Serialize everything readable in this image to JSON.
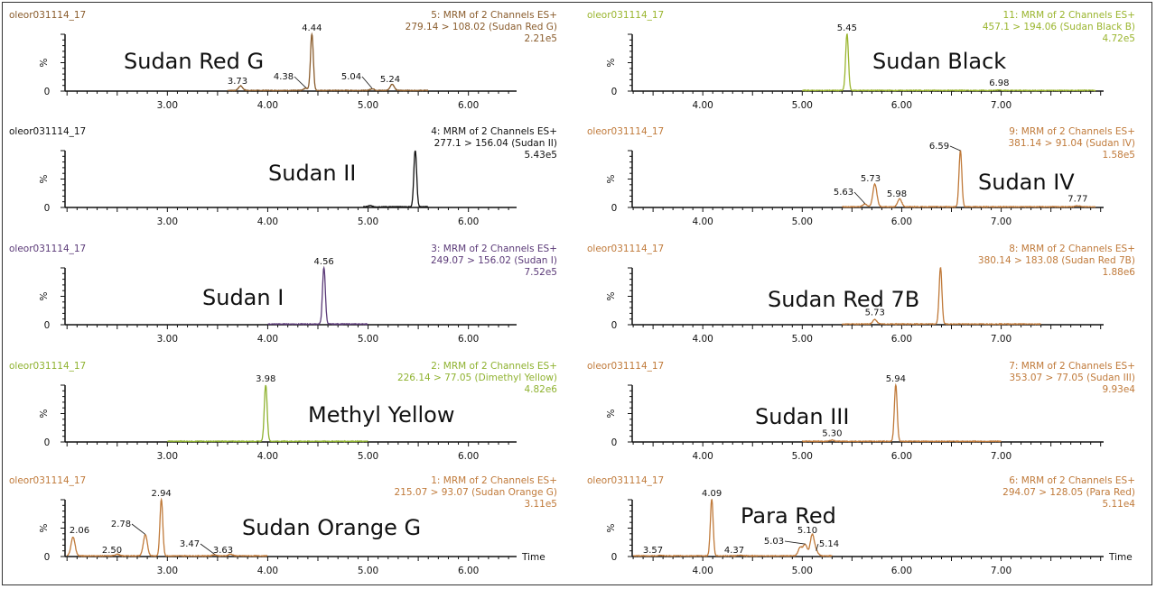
{
  "chart_data": [
    {
      "type": "line",
      "sample": "oleor031114_17",
      "header": [
        "5: MRM of 2 Channels ES+",
        "279.14 > 108.02 (Sudan Red G)",
        "2.21e5"
      ],
      "compound": "Sudan Red G",
      "color": "#8a5c2c",
      "ylabel": "%",
      "xlim": [
        1.98,
        6.48
      ],
      "ylim": [
        0,
        100
      ],
      "xticks": [
        "3.00",
        "4.00",
        "5.00",
        "6.00"
      ],
      "trace_range": [
        3.6,
        5.6
      ],
      "peaks": [
        {
          "rt": 3.73,
          "height": 8,
          "label": "3.73"
        },
        {
          "rt": 4.38,
          "height": 4,
          "label": "4.38"
        },
        {
          "rt": 4.44,
          "height": 100,
          "label": "4.44"
        },
        {
          "rt": 5.04,
          "height": 3,
          "label": "5.04"
        },
        {
          "rt": 5.24,
          "height": 11,
          "label": "5.24"
        }
      ]
    },
    {
      "type": "line",
      "sample": "oleor031114_17",
      "header": [
        "4: MRM of 2 Channels ES+",
        "277.1 > 156.04 (Sudan II)",
        "5.43e5"
      ],
      "compound": "Sudan II",
      "color": "#111111",
      "ylabel": "%",
      "xlim": [
        1.98,
        6.48
      ],
      "ylim": [
        0,
        100
      ],
      "xticks": [
        "3.00",
        "4.00",
        "5.00",
        "6.00"
      ],
      "trace_range": [
        4.95,
        5.6
      ],
      "peaks": [
        {
          "rt": 5.02,
          "height": 2,
          "label": ""
        },
        {
          "rt": 5.47,
          "height": 100,
          "label": ""
        }
      ]
    },
    {
      "type": "line",
      "sample": "oleor031114_17",
      "header": [
        "3: MRM of 2 Channels ES+",
        "249.07 > 156.02 (Sudan I)",
        "7.52e5"
      ],
      "compound": "Sudan I",
      "color": "#5b3a78",
      "ylabel": "%",
      "xlim": [
        1.98,
        6.48
      ],
      "ylim": [
        0,
        100
      ],
      "xticks": [
        "3.00",
        "4.00",
        "5.00",
        "6.00"
      ],
      "trace_range": [
        4.0,
        5.0
      ],
      "peaks": [
        {
          "rt": 4.56,
          "height": 100,
          "label": "4.56"
        }
      ]
    },
    {
      "type": "line",
      "sample": "oleor031114_17",
      "header": [
        "2: MRM of 2 Channels ES+",
        "226.14 > 77.05 (Dimethyl Yellow)",
        "4.82e6"
      ],
      "compound": "Methyl Yellow",
      "color": "#8fb230",
      "ylabel": "%",
      "xlim": [
        1.98,
        6.48
      ],
      "ylim": [
        0,
        100
      ],
      "xticks": [
        "3.00",
        "4.00",
        "5.00",
        "6.00"
      ],
      "trace_range": [
        3.0,
        5.0
      ],
      "peaks": [
        {
          "rt": 3.98,
          "height": 100,
          "label": "3.98"
        }
      ]
    },
    {
      "type": "line",
      "sample": "oleor031114_17",
      "header": [
        "1: MRM of 2 Channels ES+",
        "215.07 > 93.07 (Sudan Orange G)",
        "3.11e5"
      ],
      "compound": "Sudan Orange G",
      "color": "#c07a3a",
      "ylabel": "%",
      "xlabel": "Time",
      "xlim": [
        1.98,
        6.48
      ],
      "ylim": [
        0,
        100
      ],
      "xticks": [
        "3.00",
        "4.00",
        "5.00",
        "6.00"
      ],
      "trace_range": [
        2.0,
        4.0
      ],
      "peaks": [
        {
          "rt": 2.06,
          "height": 33,
          "label": "2.06"
        },
        {
          "rt": 2.5,
          "height": 3,
          "label": "2.50"
        },
        {
          "rt": 2.78,
          "height": 37,
          "label": "2.78"
        },
        {
          "rt": 2.94,
          "height": 100,
          "label": "2.94"
        },
        {
          "rt": 3.47,
          "height": 2,
          "label": "3.47"
        },
        {
          "rt": 3.63,
          "height": 3,
          "label": "3.63"
        }
      ]
    },
    {
      "type": "line",
      "sample": "oleor031114_17",
      "header": [
        "11: MRM of 2 Channels ES+",
        "457.1 > 194.06 (Sudan Black B)",
        "4.72e5"
      ],
      "compound": "Sudan Black",
      "color": "#9ab52e",
      "ylabel": "%",
      "xlim": [
        3.29,
        8.03
      ],
      "ylim": [
        0,
        100
      ],
      "xticks": [
        "4.00",
        "5.00",
        "6.00",
        "7.00"
      ],
      "trace_range": [
        5.0,
        7.95
      ],
      "peaks": [
        {
          "rt": 5.45,
          "height": 100,
          "label": "5.45"
        },
        {
          "rt": 6.98,
          "height": 1,
          "label": "6.98"
        }
      ]
    },
    {
      "type": "line",
      "sample": "oleor031114_17",
      "header": [
        "9: MRM of 2 Channels ES+",
        "381.14 > 91.04 (Sudan IV)",
        "1.58e5"
      ],
      "compound": "Sudan IV",
      "color": "#c07a3a",
      "ylabel": "%",
      "xlim": [
        3.29,
        8.03
      ],
      "ylim": [
        0,
        100
      ],
      "xticks": [
        "4.00",
        "5.00",
        "6.00",
        "7.00"
      ],
      "trace_range": [
        5.4,
        7.95
      ],
      "peaks": [
        {
          "rt": 5.63,
          "height": 5,
          "label": "5.63"
        },
        {
          "rt": 5.73,
          "height": 40,
          "label": "5.73"
        },
        {
          "rt": 5.98,
          "height": 14,
          "label": "5.98"
        },
        {
          "rt": 6.59,
          "height": 100,
          "label": "6.59"
        },
        {
          "rt": 7.77,
          "height": 2,
          "label": "7.77"
        }
      ]
    },
    {
      "type": "line",
      "sample": "oleor031114_17",
      "header": [
        "8: MRM of 2 Channels ES+",
        "380.14 > 183.08 (Sudan Red 7B)",
        "1.88e6"
      ],
      "compound": "Sudan Red 7B",
      "color": "#c07a3a",
      "ylabel": "%",
      "xlim": [
        3.29,
        8.03
      ],
      "ylim": [
        0,
        100
      ],
      "xticks": [
        "4.00",
        "5.00",
        "6.00",
        "7.00"
      ],
      "trace_range": [
        5.4,
        7.4
      ],
      "peaks": [
        {
          "rt": 5.73,
          "height": 8,
          "label": "5.73"
        },
        {
          "rt": 6.39,
          "height": 100,
          "label": ""
        }
      ]
    },
    {
      "type": "line",
      "sample": "oleor031114_17",
      "header": [
        "7: MRM of 2 Channels ES+",
        "353.07 > 77.05 (Sudan III)",
        "9.93e4"
      ],
      "compound": "Sudan III",
      "color": "#c07a3a",
      "ylabel": "%",
      "xlim": [
        3.29,
        8.03
      ],
      "ylim": [
        0,
        100
      ],
      "xticks": [
        "4.00",
        "5.00",
        "6.00",
        "7.00"
      ],
      "trace_range": [
        5.0,
        7.0
      ],
      "peaks": [
        {
          "rt": 5.3,
          "height": 2,
          "label": "5.30"
        },
        {
          "rt": 5.94,
          "height": 100,
          "label": "5.94"
        }
      ]
    },
    {
      "type": "line",
      "sample": "oleor031114_17",
      "header": [
        "6: MRM of 2 Channels ES+",
        "294.07 > 128.05 (Para Red)",
        "5.11e4"
      ],
      "compound": "Para Red",
      "color": "#c07a3a",
      "ylabel": "%",
      "xlabel": "Time",
      "xlim": [
        3.29,
        8.03
      ],
      "ylim": [
        0,
        100
      ],
      "xticks": [
        "4.00",
        "5.00",
        "6.00",
        "7.00"
      ],
      "trace_range": [
        3.3,
        5.3
      ],
      "peaks": [
        {
          "rt": 3.57,
          "height": 1,
          "label": "3.57"
        },
        {
          "rt": 4.09,
          "height": 100,
          "label": "4.09"
        },
        {
          "rt": 4.37,
          "height": 1,
          "label": "4.37"
        },
        {
          "rt": 4.98,
          "height": 15,
          "label": ""
        },
        {
          "rt": 5.03,
          "height": 20,
          "label": "5.03"
        },
        {
          "rt": 5.1,
          "height": 37,
          "label": "5.10"
        },
        {
          "rt": 5.14,
          "height": 8,
          "label": "5.14"
        }
      ]
    }
  ]
}
